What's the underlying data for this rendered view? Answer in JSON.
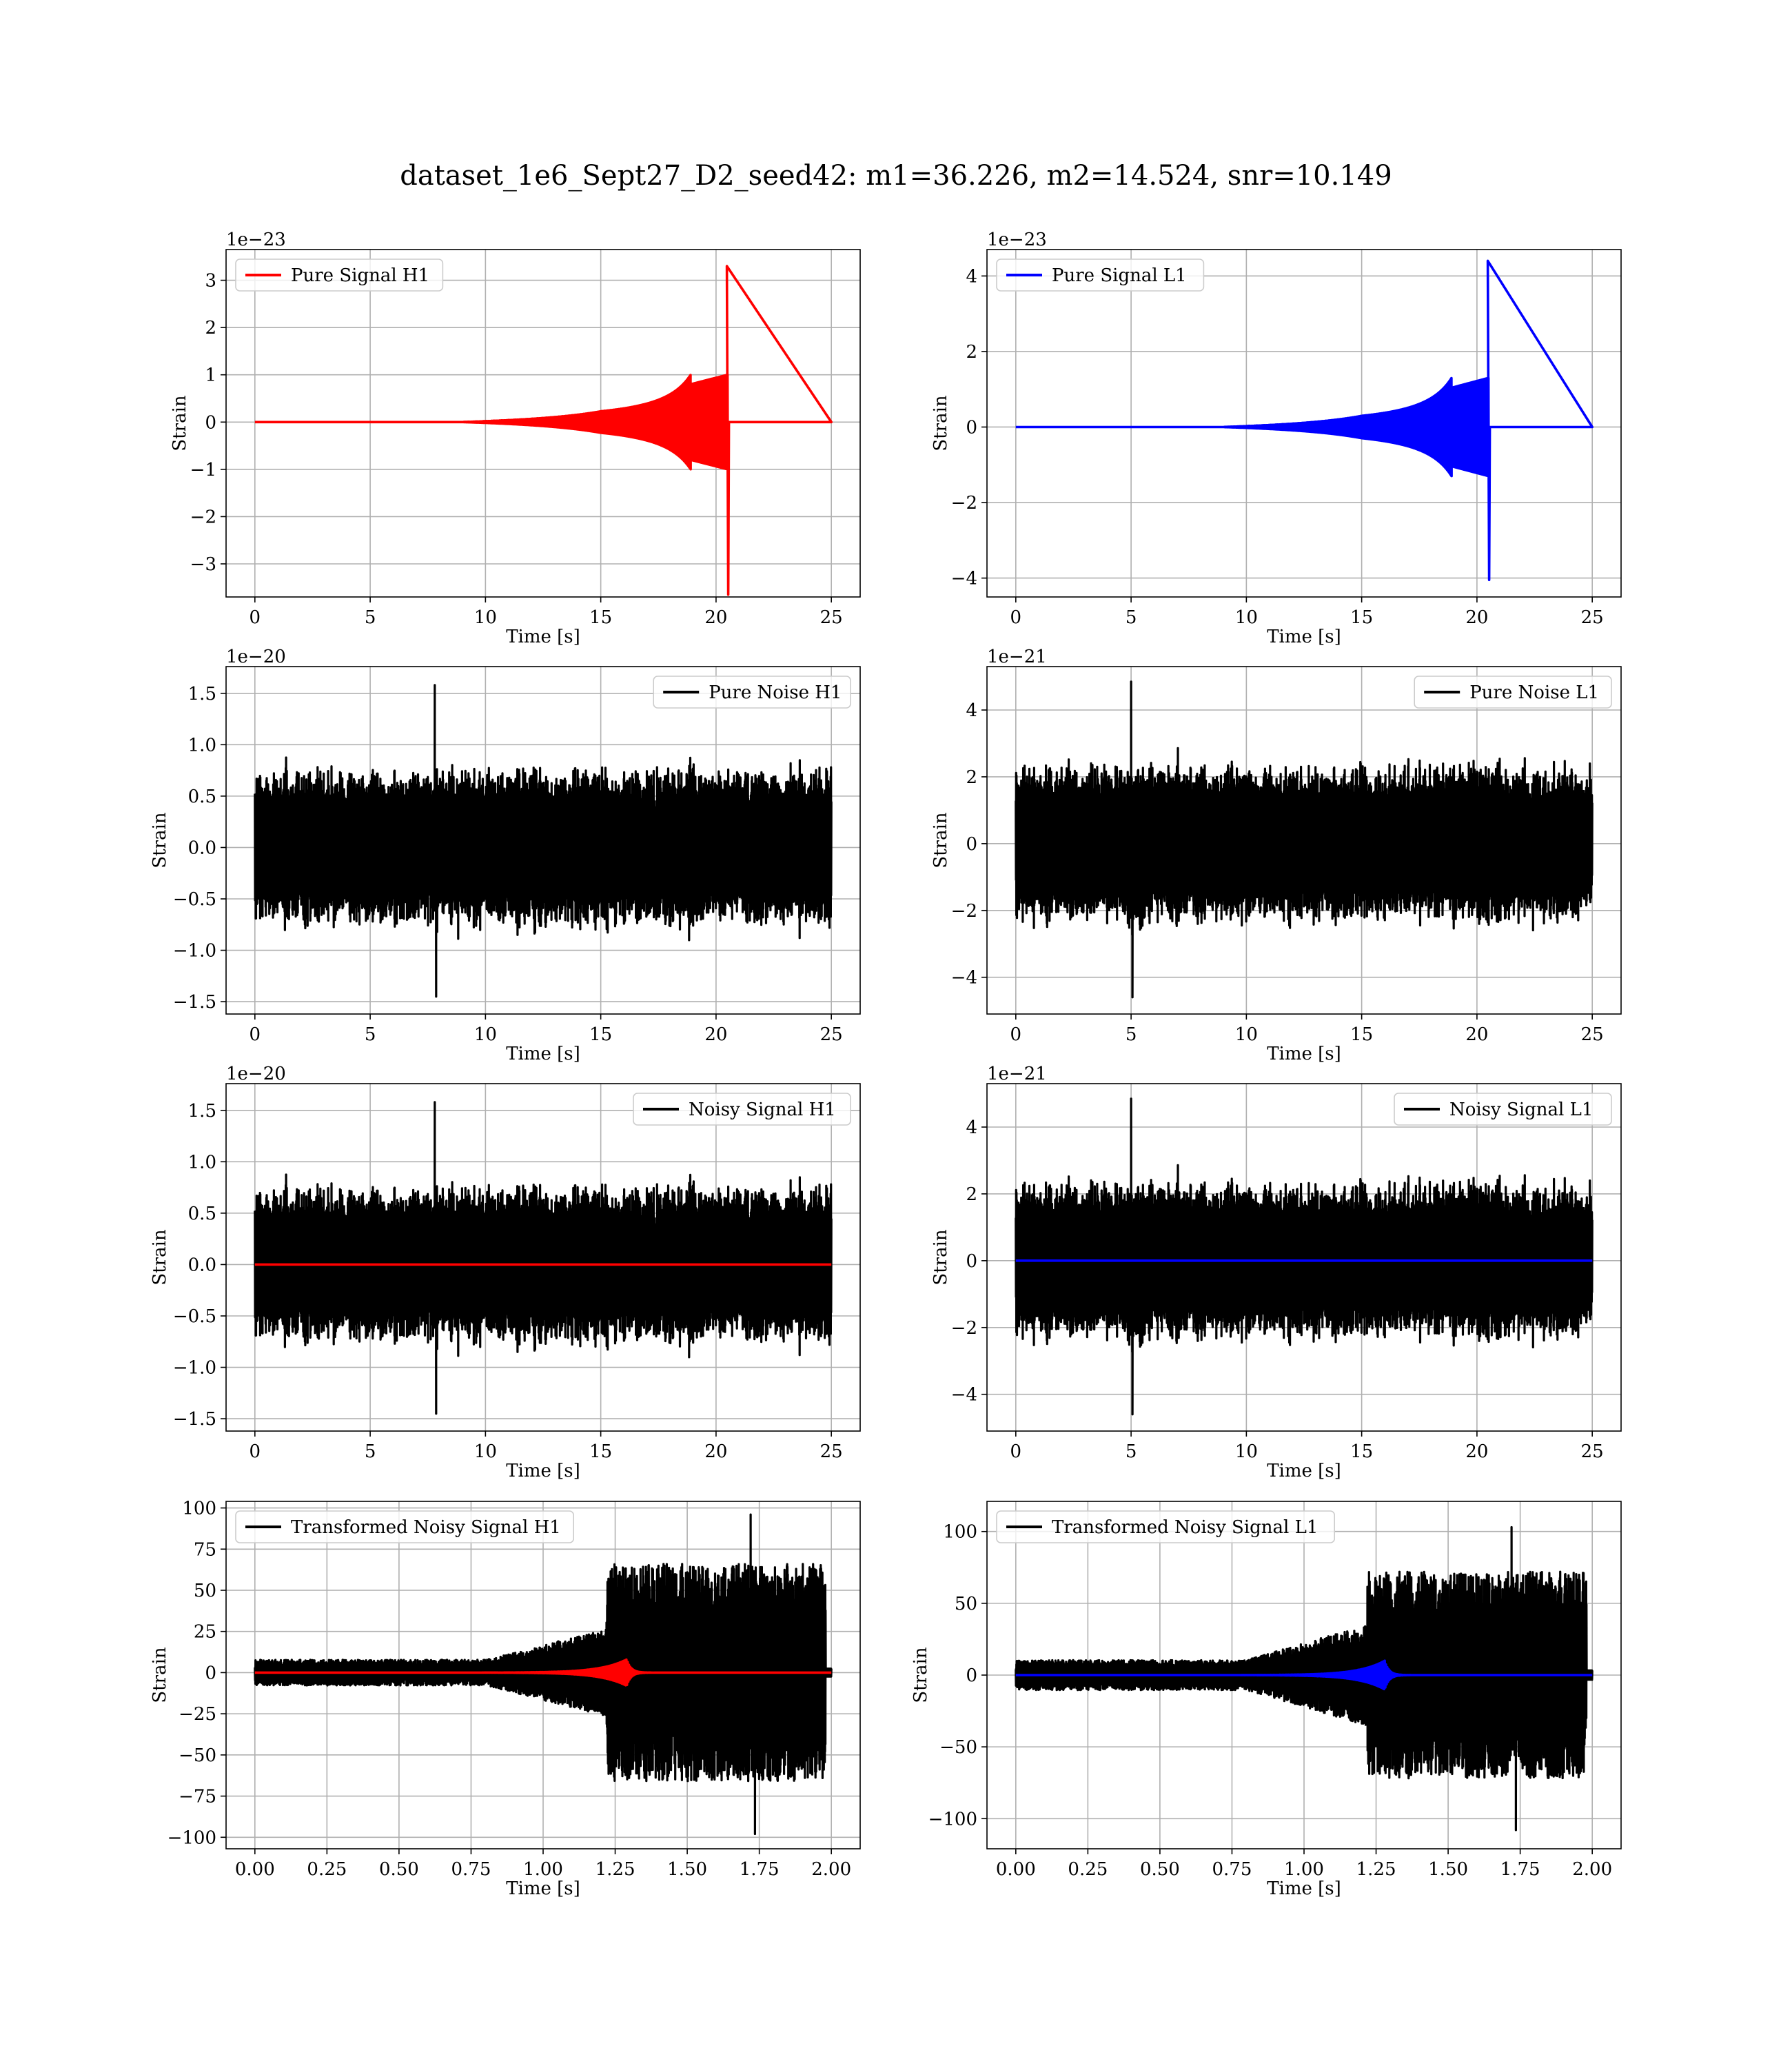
{
  "figure_title": "dataset_1e6_Sept27_D2_seed42: m1=36.226, m2=14.524, snr=10.149",
  "colors": {
    "h1": "#ff0000",
    "l1": "#0000ff",
    "noise": "#000000",
    "grid": "#b0b0b0"
  },
  "chart_data": [
    {
      "id": "pure-signal-h1",
      "type": "line",
      "legend": "Pure Signal H1",
      "legend_loc": "upper-left",
      "xlabel": "Time [s]",
      "ylabel": "Strain",
      "offset_text": "1e−23",
      "xlim": [
        -1.25,
        26.25
      ],
      "ylim": [
        -3.7,
        3.65
      ],
      "xticks": [
        0,
        5,
        10,
        15,
        20,
        25
      ],
      "xtick_labels": [
        "0",
        "5",
        "10",
        "15",
        "20",
        "25"
      ],
      "yticks": [
        -3,
        -2,
        -1,
        0,
        1,
        2,
        3
      ],
      "ytick_labels": [
        "−3",
        "−2",
        "−1",
        "0",
        "1",
        "2",
        "3"
      ],
      "grid": true,
      "series": [
        {
          "name": "Pure Signal H1",
          "color": "#ff0000",
          "kind": "chirp",
          "x_start": 0,
          "x_end": 25,
          "merger_time": 20.5,
          "peak_pos": 3.3,
          "peak_neg": -3.65,
          "ring_plateau": 1.0,
          "env_start": 15
        }
      ]
    },
    {
      "id": "pure-signal-l1",
      "type": "line",
      "legend": "Pure Signal L1",
      "legend_loc": "upper-left",
      "xlabel": "Time [s]",
      "ylabel": "Strain",
      "offset_text": "1e−23",
      "xlim": [
        -1.25,
        26.25
      ],
      "ylim": [
        -4.5,
        4.7
      ],
      "xticks": [
        0,
        5,
        10,
        15,
        20,
        25
      ],
      "xtick_labels": [
        "0",
        "5",
        "10",
        "15",
        "20",
        "25"
      ],
      "yticks": [
        -4,
        -2,
        0,
        2,
        4
      ],
      "ytick_labels": [
        "−4",
        "−2",
        "0",
        "2",
        "4"
      ],
      "grid": true,
      "series": [
        {
          "name": "Pure Signal L1",
          "color": "#0000ff",
          "kind": "chirp",
          "x_start": 0,
          "x_end": 25,
          "merger_time": 20.5,
          "peak_pos": 4.4,
          "peak_neg": -4.05,
          "ring_plateau": 1.3,
          "env_start": 15
        }
      ]
    },
    {
      "id": "pure-noise-h1",
      "type": "line",
      "legend": "Pure Noise H1",
      "legend_loc": "upper-right",
      "xlabel": "Time [s]",
      "ylabel": "Strain",
      "offset_text": "1e−20",
      "xlim": [
        -1.25,
        26.25
      ],
      "ylim": [
        -1.62,
        1.76
      ],
      "xticks": [
        0,
        5,
        10,
        15,
        20,
        25
      ],
      "xtick_labels": [
        "0",
        "5",
        "10",
        "15",
        "20",
        "25"
      ],
      "yticks": [
        -1.5,
        -1.0,
        -0.5,
        0.0,
        0.5,
        1.0,
        1.5
      ],
      "ytick_labels": [
        "−1.5",
        "−1.0",
        "−0.5",
        "0.0",
        "0.5",
        "1.0",
        "1.5"
      ],
      "grid": true,
      "series": [
        {
          "name": "Pure Noise H1",
          "color": "#000000",
          "kind": "noise",
          "x_start": 0,
          "x_end": 25,
          "peak_pos": 1.58,
          "peak_neg": -1.45,
          "peak_time": 7.8,
          "typical": 0.75,
          "seed": 7
        }
      ]
    },
    {
      "id": "pure-noise-l1",
      "type": "line",
      "legend": "Pure Noise L1",
      "legend_loc": "upper-right",
      "xlabel": "Time [s]",
      "ylabel": "Strain",
      "offset_text": "1e−21",
      "xlim": [
        -1.25,
        26.25
      ],
      "ylim": [
        -5.1,
        5.3
      ],
      "xticks": [
        0,
        5,
        10,
        15,
        20,
        25
      ],
      "xtick_labels": [
        "0",
        "5",
        "10",
        "15",
        "20",
        "25"
      ],
      "yticks": [
        -4,
        -2,
        0,
        2,
        4
      ],
      "ytick_labels": [
        "−4",
        "−2",
        "0",
        "2",
        "4"
      ],
      "grid": true,
      "series": [
        {
          "name": "Pure Noise L1",
          "color": "#000000",
          "kind": "noise",
          "x_start": 0,
          "x_end": 25,
          "peak_pos": 4.85,
          "peak_neg": -4.6,
          "peak_time": 5.0,
          "typical": 2.3,
          "seed": 13
        }
      ]
    },
    {
      "id": "noisy-signal-h1",
      "type": "line",
      "legend": "Noisy Signal H1",
      "legend_loc": "upper-right",
      "xlabel": "Time [s]",
      "ylabel": "Strain",
      "offset_text": "1e−20",
      "xlim": [
        -1.25,
        26.25
      ],
      "ylim": [
        -1.62,
        1.76
      ],
      "xticks": [
        0,
        5,
        10,
        15,
        20,
        25
      ],
      "xtick_labels": [
        "0",
        "5",
        "10",
        "15",
        "20",
        "25"
      ],
      "yticks": [
        -1.5,
        -1.0,
        -0.5,
        0.0,
        0.5,
        1.0,
        1.5
      ],
      "ytick_labels": [
        "−1.5",
        "−1.0",
        "−0.5",
        "0.0",
        "0.5",
        "1.0",
        "1.5"
      ],
      "grid": true,
      "series": [
        {
          "name": "Noisy Signal H1",
          "color": "#000000",
          "kind": "noise",
          "x_start": 0,
          "x_end": 25,
          "peak_pos": 1.58,
          "peak_neg": -1.45,
          "peak_time": 7.8,
          "typical": 0.75,
          "seed": 7
        },
        {
          "color": "#ff0000",
          "kind": "flat",
          "x_start": 0,
          "x_end": 25,
          "value": 0
        }
      ]
    },
    {
      "id": "noisy-signal-l1",
      "type": "line",
      "legend": "Noisy Signal L1",
      "legend_loc": "upper-right",
      "xlabel": "Time [s]",
      "ylabel": "Strain",
      "offset_text": "1e−21",
      "xlim": [
        -1.25,
        26.25
      ],
      "ylim": [
        -5.1,
        5.3
      ],
      "xticks": [
        0,
        5,
        10,
        15,
        20,
        25
      ],
      "xtick_labels": [
        "0",
        "5",
        "10",
        "15",
        "20",
        "25"
      ],
      "yticks": [
        -4,
        -2,
        0,
        2,
        4
      ],
      "ytick_labels": [
        "−4",
        "−2",
        "0",
        "2",
        "4"
      ],
      "grid": true,
      "series": [
        {
          "name": "Noisy Signal L1",
          "color": "#000000",
          "kind": "noise",
          "x_start": 0,
          "x_end": 25,
          "peak_pos": 4.85,
          "peak_neg": -4.6,
          "peak_time": 5.0,
          "typical": 2.3,
          "seed": 13
        },
        {
          "color": "#0000ff",
          "kind": "flat",
          "x_start": 0,
          "x_end": 25,
          "value": 0
        }
      ]
    },
    {
      "id": "transformed-noisy-signal-h1",
      "type": "line",
      "legend": "Transformed Noisy Signal H1",
      "legend_loc": "upper-left",
      "xlabel": "Time [s]",
      "ylabel": "Strain",
      "offset_text": "",
      "xlim": [
        -0.1,
        2.1
      ],
      "ylim": [
        -107,
        104
      ],
      "xticks": [
        0.0,
        0.25,
        0.5,
        0.75,
        1.0,
        1.25,
        1.5,
        1.75,
        2.0
      ],
      "xtick_labels": [
        "0.00",
        "0.25",
        "0.50",
        "0.75",
        "1.00",
        "1.25",
        "1.50",
        "1.75",
        "2.00"
      ],
      "yticks": [
        -100,
        -75,
        -50,
        -25,
        0,
        25,
        50,
        75,
        100
      ],
      "ytick_labels": [
        "−100",
        "−75",
        "−50",
        "−25",
        "0",
        "25",
        "50",
        "75",
        "100"
      ],
      "grid": true,
      "series": [
        {
          "name": "Transformed Noisy Signal H1",
          "color": "#000000",
          "kind": "whitened",
          "x_start": 0,
          "x_end": 2.0,
          "low_amp": 6,
          "ramp_start": 0.8,
          "jump_time": 1.22,
          "high_amp": 55,
          "peak_pos": 96,
          "peak_neg": -98,
          "cut_time": 1.98,
          "seed": 21
        },
        {
          "color": "#ff0000",
          "kind": "burst",
          "x_start": 0,
          "x_end": 2.0,
          "center": 1.29,
          "amp": 8
        }
      ]
    },
    {
      "id": "transformed-noisy-signal-l1",
      "type": "line",
      "legend": "Transformed Noisy Signal L1",
      "legend_loc": "upper-left",
      "xlabel": "Time [s]",
      "ylabel": "Strain",
      "offset_text": "",
      "xlim": [
        -0.1,
        2.1
      ],
      "ylim": [
        -121,
        121
      ],
      "xticks": [
        0.0,
        0.25,
        0.5,
        0.75,
        1.0,
        1.25,
        1.5,
        1.75,
        2.0
      ],
      "xtick_labels": [
        "0.00",
        "0.25",
        "0.50",
        "0.75",
        "1.00",
        "1.25",
        "1.50",
        "1.75",
        "2.00"
      ],
      "yticks": [
        -100,
        -50,
        0,
        50,
        100
      ],
      "ytick_labels": [
        "−100",
        "−50",
        "0",
        "50",
        "100"
      ],
      "grid": true,
      "series": [
        {
          "name": "Transformed Noisy Signal L1",
          "color": "#000000",
          "kind": "whitened",
          "x_start": 0,
          "x_end": 2.0,
          "low_amp": 8,
          "ramp_start": 0.8,
          "jump_time": 1.22,
          "high_amp": 60,
          "peak_pos": 103,
          "peak_neg": -108,
          "cut_time": 1.98,
          "seed": 33
        },
        {
          "color": "#0000ff",
          "kind": "burst",
          "x_start": 0,
          "x_end": 2.0,
          "center": 1.28,
          "amp": 10
        }
      ]
    }
  ]
}
